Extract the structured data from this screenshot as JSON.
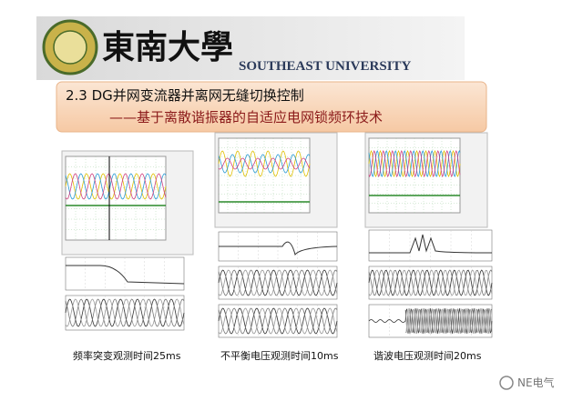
{
  "header": {
    "logo_text": "東南大學",
    "university": "SOUTHEAST UNIVERSITY"
  },
  "title": {
    "line1": "2.3 DG并网变流器并离网无缝切换控制",
    "line2": "——基于离散谐振器的自适应电网锁频环技术"
  },
  "figures": [
    {
      "caption": "频率突变观测时间25ms"
    },
    {
      "caption": "不平衡电压观测时间10ms"
    },
    {
      "caption": "谐波电压观测时间20ms"
    }
  ],
  "watermark": "NE电气"
}
